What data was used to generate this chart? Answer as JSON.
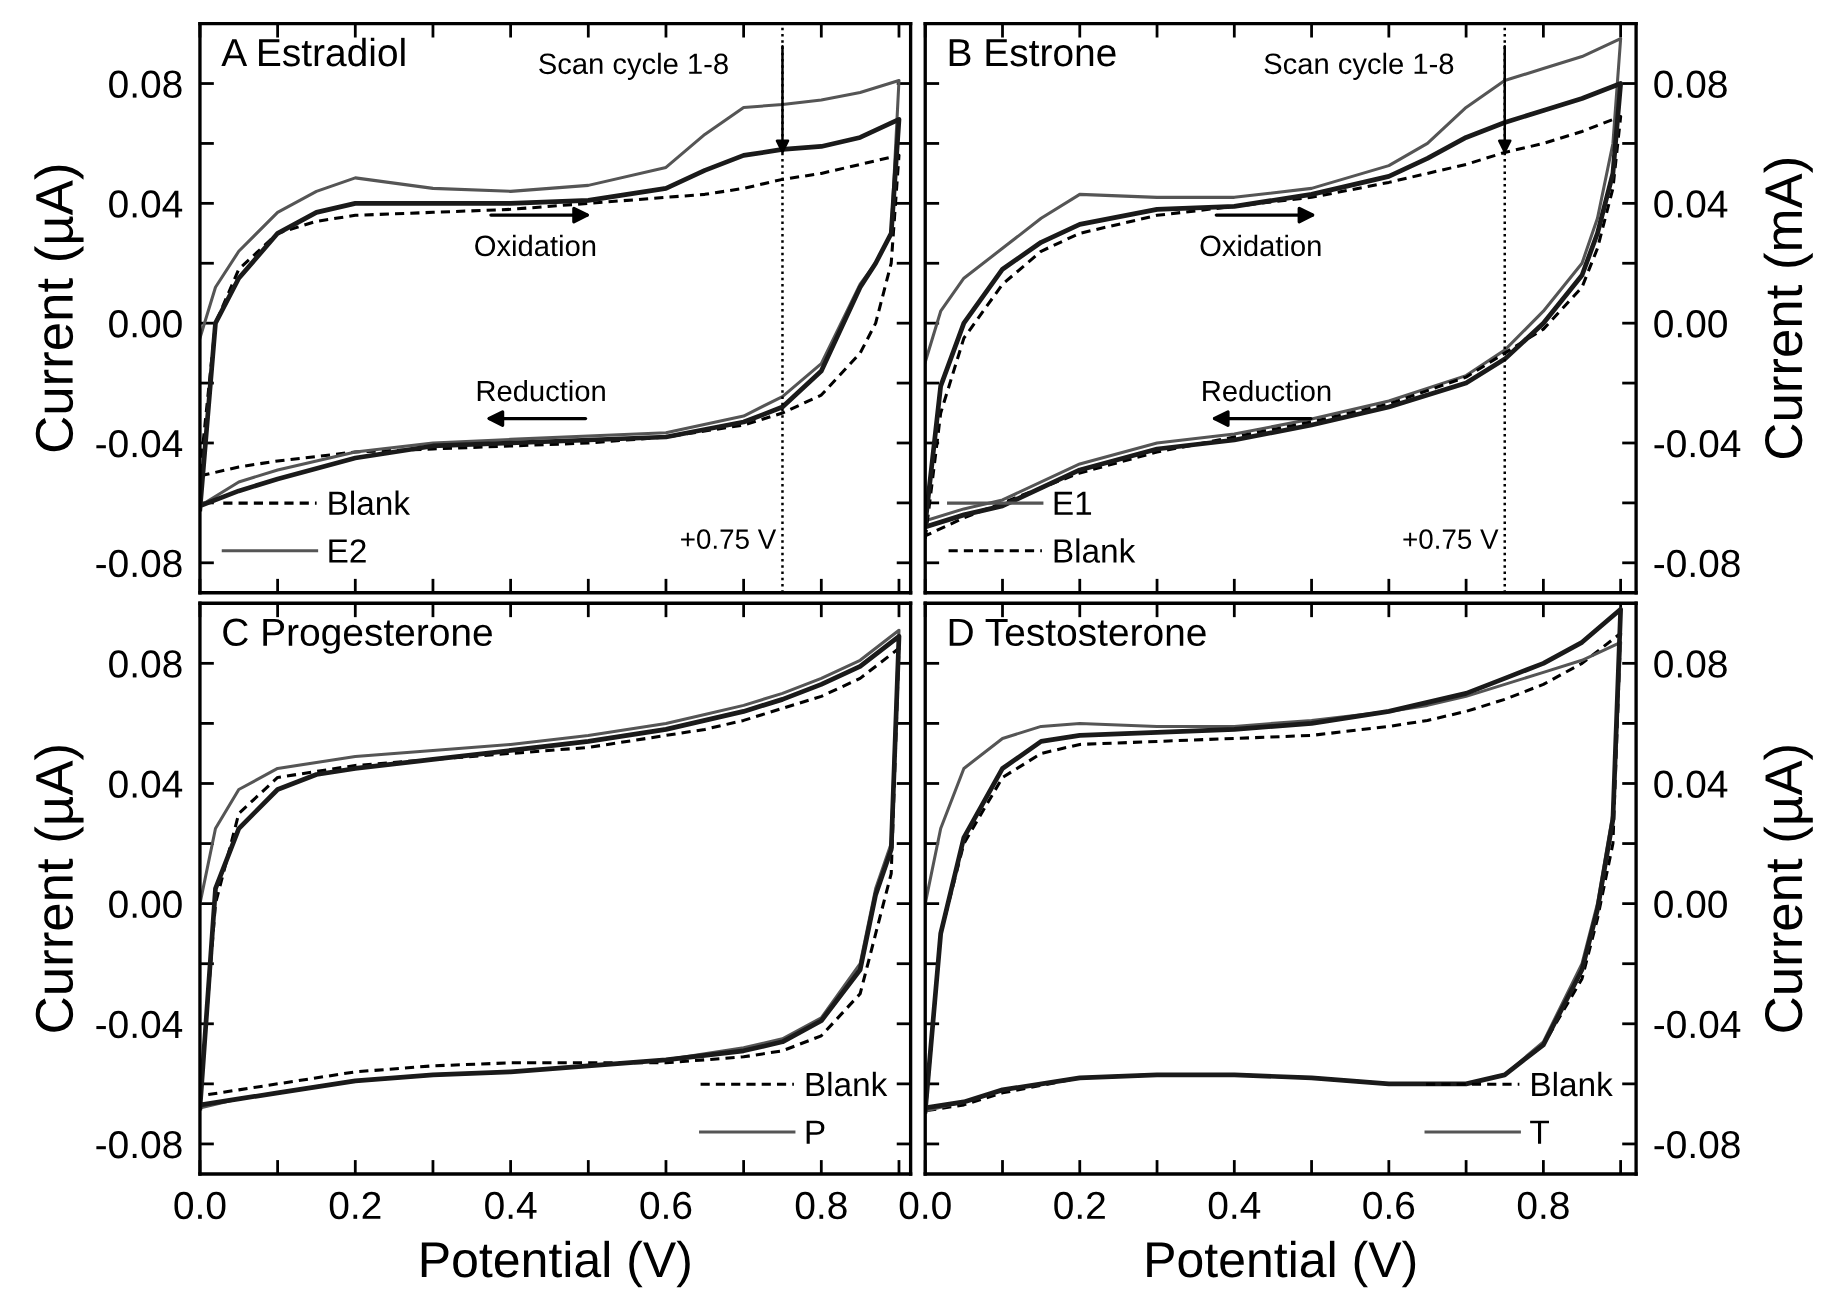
{
  "chart_data": [
    {
      "type": "line",
      "title": "A Estradiol",
      "ylabel": "Current (µA)",
      "tick_labels": "y",
      "legend": "bottom left",
      "grid": false,
      "x": [
        0,
        0.02,
        0.05,
        0.1,
        0.15,
        0.2,
        0.3,
        0.4,
        0.5,
        0.6,
        0.65,
        0.7,
        0.75,
        0.8,
        0.85,
        0.9,
        0.89,
        0.87,
        0.85,
        0.8,
        0.75,
        0.7,
        0.6,
        0.5,
        0.4,
        0.3,
        0.2,
        0.1,
        0.05,
        0
      ],
      "xlim": [
        0,
        0.915
      ],
      "ylim": [
        -0.09,
        0.1
      ],
      "xticks": [
        {
          "value": 0,
          "label": null
        },
        {
          "value": 0.1,
          "label": null
        },
        {
          "value": 0.2,
          "label": null
        },
        {
          "value": 0.3,
          "label": null
        },
        {
          "value": 0.4,
          "label": null
        },
        {
          "value": 0.5,
          "label": null
        },
        {
          "value": 0.6,
          "label": null
        },
        {
          "value": 0.7,
          "label": null
        },
        {
          "value": 0.8,
          "label": null
        },
        {
          "value": 0.9,
          "label": null
        }
      ],
      "yticks": [
        -0.08,
        {
          "value": -0.06,
          "label": null
        },
        -0.04,
        {
          "value": -0.02,
          "label": null
        },
        {
          "value": 0,
          "label": "0.00"
        },
        {
          "value": 0.02,
          "label": null
        },
        0.04,
        {
          "value": 0.06,
          "label": null
        },
        0.08
      ],
      "series": [
        {
          "name": "Blank",
          "color": "#000000",
          "line_style": "dashed",
          "values": [
            -0.05,
            0.0,
            0.018,
            0.03,
            0.034,
            0.036,
            0.037,
            0.038,
            0.04,
            0.042,
            0.043,
            0.045,
            0.048,
            0.05,
            0.053,
            0.056,
            0.02,
            0.0,
            -0.01,
            -0.024,
            -0.03,
            -0.034,
            -0.038,
            -0.04,
            -0.041,
            -0.042,
            -0.043,
            -0.046,
            -0.048,
            -0.051
          ]
        },
        {
          "name": "E2",
          "color": "#555555",
          "line_style": "solid",
          "values": [
            -0.005,
            0.012,
            0.024,
            0.037,
            0.044,
            0.0485,
            0.045,
            0.044,
            0.046,
            0.052,
            0.063,
            0.072,
            0.073,
            0.0745,
            0.077,
            0.081,
            0.03,
            0.02,
            0.013,
            -0.0135,
            -0.0245,
            -0.031,
            -0.0366,
            -0.0377,
            -0.0388,
            -0.04,
            -0.043,
            -0.049,
            -0.053,
            -0.061
          ]
        },
        {
          "color": "#1a1a1a",
          "line_style": "solid",
          "values": [
            -0.062,
            0.0,
            0.015,
            0.03,
            0.037,
            0.04,
            0.04,
            0.04,
            0.041,
            0.045,
            0.051,
            0.056,
            0.058,
            0.059,
            0.062,
            0.068,
            0.03,
            0.02,
            0.012,
            -0.016,
            -0.028,
            -0.033,
            -0.038,
            -0.039,
            -0.04,
            -0.041,
            -0.045,
            -0.052,
            -0.056,
            -0.061
          ]
        }
      ],
      "ref_lines": [
        {
          "axis": "x",
          "value": 0.75,
          "label": "+0.75 V",
          "line_style": "dotted",
          "color": "#000000"
        }
      ],
      "annotations": [
        "Scan cycle 1-8",
        "Oxidation",
        "Reduction"
      ]
    },
    {
      "type": "line",
      "title": "B Estrone",
      "ylabel": "Current (mA)",
      "tick_labels": "y",
      "legend": "bottom left",
      "grid": false,
      "x": [
        0,
        0.02,
        0.05,
        0.1,
        0.15,
        0.2,
        0.3,
        0.4,
        0.5,
        0.6,
        0.65,
        0.7,
        0.75,
        0.8,
        0.85,
        0.9,
        0.89,
        0.87,
        0.85,
        0.8,
        0.75,
        0.7,
        0.6,
        0.5,
        0.4,
        0.3,
        0.2,
        0.1,
        0.05,
        0
      ],
      "xlim": [
        0,
        0.92
      ],
      "ylim": [
        -0.09,
        0.1
      ],
      "xticks": [
        {
          "value": 0,
          "label": null
        },
        {
          "value": 0.1,
          "label": null
        },
        {
          "value": 0.2,
          "label": null
        },
        {
          "value": 0.3,
          "label": null
        },
        {
          "value": 0.4,
          "label": null
        },
        {
          "value": 0.5,
          "label": null
        },
        {
          "value": 0.6,
          "label": null
        },
        {
          "value": 0.7,
          "label": null
        },
        {
          "value": 0.8,
          "label": null
        },
        {
          "value": 0.9,
          "label": null
        }
      ],
      "yticks": [
        -0.08,
        {
          "value": -0.06,
          "label": null
        },
        -0.04,
        {
          "value": -0.02,
          "label": null
        },
        {
          "value": 0,
          "label": "0.00"
        },
        {
          "value": 0.02,
          "label": null
        },
        0.04,
        {
          "value": 0.06,
          "label": null
        },
        0.08
      ],
      "series": [
        {
          "name": "E1",
          "color": "#555555",
          "line_style": "solid",
          "values": [
            -0.013,
            0.004,
            0.015,
            0.025,
            0.035,
            0.043,
            0.042,
            0.042,
            0.045,
            0.0526,
            0.06,
            0.072,
            0.081,
            0.085,
            0.089,
            0.095,
            0.06,
            0.035,
            0.02,
            0.004,
            -0.009,
            -0.0175,
            -0.026,
            -0.032,
            -0.037,
            -0.04,
            -0.047,
            -0.059,
            -0.062,
            -0.066
          ]
        },
        {
          "name": "Blank",
          "color": "#000000",
          "line_style": "dashed",
          "values": [
            -0.072,
            -0.03,
            -0.005,
            0.013,
            0.024,
            0.03,
            0.036,
            0.039,
            0.042,
            0.047,
            0.05,
            0.053,
            0.057,
            0.06,
            0.064,
            0.069,
            0.045,
            0.025,
            0.012,
            -0.002,
            -0.01,
            -0.018,
            -0.027,
            -0.033,
            -0.038,
            -0.043,
            -0.05,
            -0.06,
            -0.065,
            -0.071
          ]
        },
        {
          "color": "#1a1a1a",
          "line_style": "solid",
          "values": [
            -0.067,
            -0.021,
            0.0,
            0.018,
            0.027,
            0.033,
            0.038,
            0.039,
            0.043,
            0.049,
            0.055,
            0.062,
            0.067,
            0.071,
            0.075,
            0.08,
            0.05,
            0.03,
            0.016,
            0.0,
            -0.012,
            -0.02,
            -0.028,
            -0.034,
            -0.039,
            -0.042,
            -0.049,
            -0.061,
            -0.064,
            -0.068
          ]
        }
      ],
      "ref_lines": [
        {
          "axis": "x",
          "value": 0.75,
          "label": "+0.75 V",
          "line_style": "dotted",
          "color": "#000000"
        }
      ],
      "annotations": [
        "Scan cycle 1-8",
        "Oxidation",
        "Reduction"
      ]
    },
    {
      "type": "line",
      "title": "C Progesterone",
      "ylabel": "Current (µA)",
      "xlabel": "Potential (V)",
      "legend": "bottom right",
      "grid": false,
      "x": [
        0,
        0.02,
        0.05,
        0.1,
        0.15,
        0.2,
        0.3,
        0.4,
        0.5,
        0.6,
        0.65,
        0.7,
        0.75,
        0.8,
        0.85,
        0.9,
        0.89,
        0.87,
        0.85,
        0.8,
        0.75,
        0.7,
        0.6,
        0.5,
        0.4,
        0.3,
        0.2,
        0.1,
        0.05,
        0
      ],
      "xlim": [
        0,
        0.915
      ],
      "ylim": [
        -0.09,
        0.1
      ],
      "xticks": [
        {
          "value": 0,
          "label": "0.0"
        },
        {
          "value": 0.1,
          "label": null
        },
        0.2,
        {
          "value": 0.3,
          "label": null
        },
        0.4,
        {
          "value": 0.5,
          "label": null
        },
        0.6,
        {
          "value": 0.7,
          "label": null
        },
        0.8,
        {
          "value": 0.9,
          "label": null
        }
      ],
      "yticks": [
        -0.08,
        {
          "value": -0.06,
          "label": null
        },
        -0.04,
        {
          "value": -0.02,
          "label": null
        },
        {
          "value": 0,
          "label": "0.00"
        },
        {
          "value": 0.02,
          "label": null
        },
        0.04,
        {
          "value": 0.06,
          "label": null
        },
        0.08
      ],
      "series": [
        {
          "name": "Blank",
          "color": "#000000",
          "line_style": "dashed",
          "values": [
            -0.065,
            0.0,
            0.03,
            0.042,
            0.044,
            0.046,
            0.048,
            0.05,
            0.052,
            0.056,
            0.058,
            0.061,
            0.065,
            0.069,
            0.075,
            0.085,
            0.01,
            -0.01,
            -0.03,
            -0.044,
            -0.049,
            -0.051,
            -0.053,
            -0.053,
            -0.053,
            -0.054,
            -0.056,
            -0.06,
            -0.062,
            -0.064
          ]
        },
        {
          "name": "P",
          "color": "#555555",
          "line_style": "solid",
          "values": [
            0.0,
            0.025,
            0.038,
            0.045,
            0.047,
            0.049,
            0.051,
            0.053,
            0.056,
            0.06,
            0.063,
            0.066,
            0.07,
            0.075,
            0.081,
            0.091,
            0.02,
            0.005,
            -0.02,
            -0.038,
            -0.045,
            -0.048,
            -0.052,
            -0.054,
            -0.056,
            -0.057,
            -0.059,
            -0.063,
            -0.065,
            -0.068
          ]
        },
        {
          "color": "#1a1a1a",
          "line_style": "solid",
          "values": [
            -0.068,
            0.005,
            0.025,
            0.038,
            0.043,
            0.045,
            0.048,
            0.051,
            0.054,
            0.058,
            0.061,
            0.064,
            0.068,
            0.073,
            0.079,
            0.089,
            0.018,
            0.003,
            -0.022,
            -0.039,
            -0.046,
            -0.049,
            -0.052,
            -0.054,
            -0.056,
            -0.057,
            -0.059,
            -0.063,
            -0.065,
            -0.067
          ]
        }
      ]
    },
    {
      "type": "line",
      "title": "D Testosterone",
      "ylabel": "Current (µA)",
      "xlabel": "Potential (V)",
      "legend": "bottom right",
      "grid": false,
      "x": [
        0,
        0.02,
        0.05,
        0.1,
        0.15,
        0.2,
        0.3,
        0.4,
        0.5,
        0.6,
        0.65,
        0.7,
        0.75,
        0.8,
        0.85,
        0.9,
        0.89,
        0.87,
        0.85,
        0.8,
        0.75,
        0.7,
        0.6,
        0.5,
        0.4,
        0.3,
        0.2,
        0.1,
        0.05,
        0
      ],
      "xlim": [
        0,
        0.92
      ],
      "ylim": [
        -0.09,
        0.1
      ],
      "xticks": [
        {
          "value": 0,
          "label": "0.0"
        },
        {
          "value": 0.1,
          "label": null
        },
        0.2,
        {
          "value": 0.3,
          "label": null
        },
        0.4,
        {
          "value": 0.5,
          "label": null
        },
        0.6,
        {
          "value": 0.7,
          "label": null
        },
        0.8,
        {
          "value": 0.9,
          "label": null
        }
      ],
      "yticks": [
        -0.08,
        {
          "value": -0.06,
          "label": null
        },
        -0.04,
        {
          "value": -0.02,
          "label": null
        },
        {
          "value": 0,
          "label": "0.00"
        },
        {
          "value": 0.02,
          "label": null
        },
        0.04,
        {
          "value": 0.06,
          "label": null
        },
        0.08
      ],
      "series": [
        {
          "name": "Blank",
          "color": "#000000",
          "line_style": "dashed",
          "values": [
            -0.07,
            -0.01,
            0.02,
            0.042,
            0.05,
            0.053,
            0.054,
            0.055,
            0.056,
            0.059,
            0.061,
            0.064,
            0.068,
            0.073,
            0.08,
            0.09,
            0.02,
            -0.005,
            -0.025,
            -0.047,
            -0.057,
            -0.06,
            -0.06,
            -0.058,
            -0.057,
            -0.057,
            -0.058,
            -0.063,
            -0.067,
            -0.069
          ]
        },
        {
          "name": "T",
          "color": "#555555",
          "line_style": "solid",
          "values": [
            0.0,
            0.025,
            0.045,
            0.055,
            0.059,
            0.06,
            0.059,
            0.059,
            0.061,
            0.064,
            0.066,
            0.069,
            0.073,
            0.077,
            0.081,
            0.087,
            0.03,
            0.0,
            -0.02,
            -0.046,
            -0.057,
            -0.06,
            -0.06,
            -0.058,
            -0.057,
            -0.057,
            -0.058,
            -0.062,
            -0.066,
            -0.069
          ]
        },
        {
          "color": "#1a1a1a",
          "line_style": "solid",
          "values": [
            -0.069,
            -0.01,
            0.022,
            0.045,
            0.054,
            0.056,
            0.057,
            0.058,
            0.06,
            0.064,
            0.067,
            0.07,
            0.075,
            0.08,
            0.087,
            0.098,
            0.028,
            -0.002,
            -0.022,
            -0.047,
            -0.057,
            -0.06,
            -0.06,
            -0.058,
            -0.057,
            -0.057,
            -0.058,
            -0.062,
            -0.066,
            -0.068
          ]
        }
      ]
    }
  ]
}
